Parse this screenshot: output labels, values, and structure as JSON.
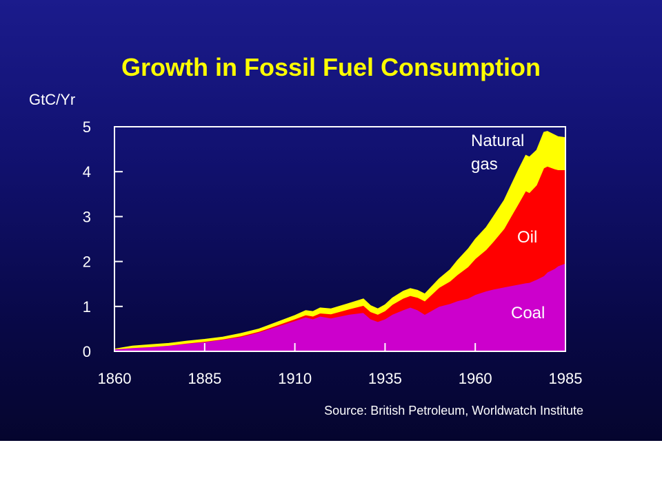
{
  "chart_data": {
    "type": "area",
    "title": "Growth in Fossil Fuel Consumption",
    "ylabel": "GtC/Yr",
    "xlabel": "",
    "xlim": [
      1860,
      1985
    ],
    "ylim": [
      0,
      5
    ],
    "x_ticks": [
      "1860",
      "1885",
      "1910",
      "1935",
      "1960",
      "1985"
    ],
    "y_ticks": [
      "0",
      "1",
      "2",
      "3",
      "4",
      "5"
    ],
    "x": [
      1860,
      1862,
      1865,
      1870,
      1875,
      1880,
      1885,
      1890,
      1895,
      1900,
      1905,
      1910,
      1913,
      1915,
      1917,
      1920,
      1925,
      1929,
      1931,
      1933,
      1935,
      1937,
      1940,
      1942,
      1944,
      1946,
      1950,
      1953,
      1955,
      1958,
      1960,
      1963,
      1965,
      1968,
      1970,
      1972,
      1974,
      1975,
      1977,
      1979,
      1980,
      1982,
      1983,
      1985
    ],
    "series": [
      {
        "name": "Coal",
        "color": "#cc00cc",
        "values": [
          0.05,
          0.06,
          0.08,
          0.1,
          0.13,
          0.17,
          0.21,
          0.26,
          0.32,
          0.42,
          0.55,
          0.68,
          0.76,
          0.72,
          0.78,
          0.74,
          0.82,
          0.86,
          0.72,
          0.66,
          0.72,
          0.82,
          0.92,
          0.98,
          0.92,
          0.82,
          1.0,
          1.06,
          1.12,
          1.18,
          1.26,
          1.34,
          1.38,
          1.43,
          1.46,
          1.49,
          1.52,
          1.53,
          1.6,
          1.68,
          1.76,
          1.84,
          1.9,
          1.96
        ]
      },
      {
        "name": "Oil",
        "color": "#ff0000",
        "values": [
          0.0,
          0.0,
          0.0,
          0.0,
          0.0,
          0.01,
          0.01,
          0.01,
          0.02,
          0.02,
          0.03,
          0.04,
          0.05,
          0.06,
          0.07,
          0.09,
          0.12,
          0.16,
          0.16,
          0.16,
          0.18,
          0.22,
          0.26,
          0.26,
          0.28,
          0.3,
          0.42,
          0.5,
          0.58,
          0.7,
          0.8,
          0.92,
          1.06,
          1.3,
          1.55,
          1.8,
          2.05,
          2.0,
          2.1,
          2.4,
          2.36,
          2.22,
          2.14,
          2.08
        ]
      },
      {
        "name": "Natural gas",
        "color": "#ffff00",
        "values": [
          0.0,
          0.02,
          0.04,
          0.05,
          0.05,
          0.05,
          0.05,
          0.05,
          0.06,
          0.06,
          0.07,
          0.08,
          0.1,
          0.11,
          0.12,
          0.12,
          0.13,
          0.15,
          0.14,
          0.13,
          0.14,
          0.15,
          0.16,
          0.16,
          0.16,
          0.16,
          0.2,
          0.26,
          0.32,
          0.4,
          0.44,
          0.5,
          0.56,
          0.64,
          0.7,
          0.76,
          0.8,
          0.8,
          0.78,
          0.8,
          0.78,
          0.76,
          0.74,
          0.72
        ]
      }
    ],
    "series_labels": [
      "Natural",
      "gas",
      "Oil",
      "Coal"
    ],
    "source": "Source: British Petroleum, Worldwatch Institute",
    "legend": "inline labels",
    "grid": false
  },
  "colors": {
    "title": "#ffff00",
    "axis": "#ffffff",
    "text": "#ffffff"
  }
}
